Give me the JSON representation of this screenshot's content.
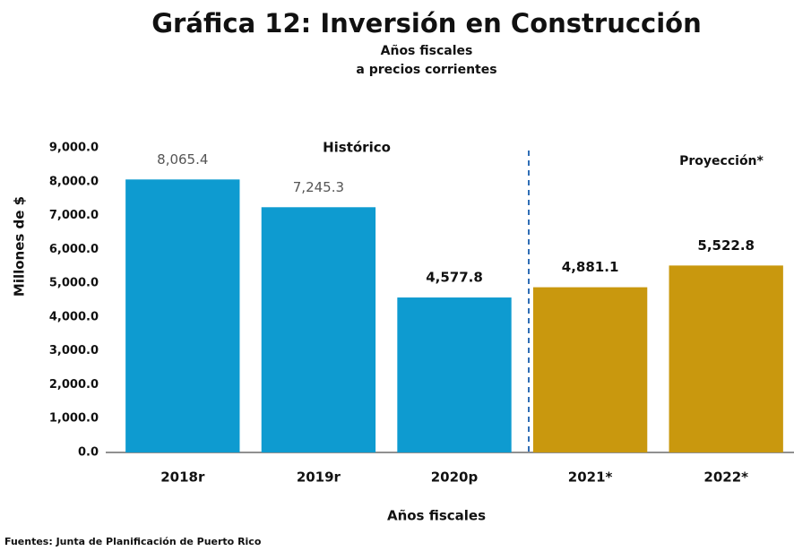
{
  "chart_data": {
    "type": "bar",
    "title": "Gráfica 12: Inversión en Construcción",
    "subtitle": [
      "Años fiscales",
      "a precios corrientes"
    ],
    "categories": [
      "2018r",
      "2019r",
      "2020p",
      "2021*",
      "2022*"
    ],
    "values": [
      8065.4,
      7245.3,
      4577.8,
      4881.1,
      5522.8
    ],
    "value_labels": [
      "8,065.4",
      "7,245.3",
      "4,577.8",
      "4,881.1",
      "5,522.8"
    ],
    "colors": [
      "#0e9bd0",
      "#0e9bd0",
      "#0e9bd0",
      "#c9980e",
      "#c9980e"
    ],
    "ylabel": "Millones de $",
    "xlabel": "Años fiscales",
    "ylim": [
      0,
      9000
    ],
    "yticks": [
      {
        "value": 0,
        "label": "0.0"
      },
      {
        "value": 1000,
        "label": "1,000.0"
      },
      {
        "value": 2000,
        "label": "2,000.0"
      },
      {
        "value": 3000,
        "label": "3,000.0"
      },
      {
        "value": 4000,
        "label": "4,000.0"
      },
      {
        "value": 5000,
        "label": "5,000.0"
      },
      {
        "value": 6000,
        "label": "6,000.0"
      },
      {
        "value": 7000,
        "label": "7,000.0"
      },
      {
        "value": 8000,
        "label": "8,000.0"
      },
      {
        "value": 9000,
        "label": "9,000.0"
      }
    ],
    "annotations": [
      "Histórico",
      "Proyección*"
    ],
    "source": "Fuentes: Junta de Planificación  de Puerto Rico"
  }
}
